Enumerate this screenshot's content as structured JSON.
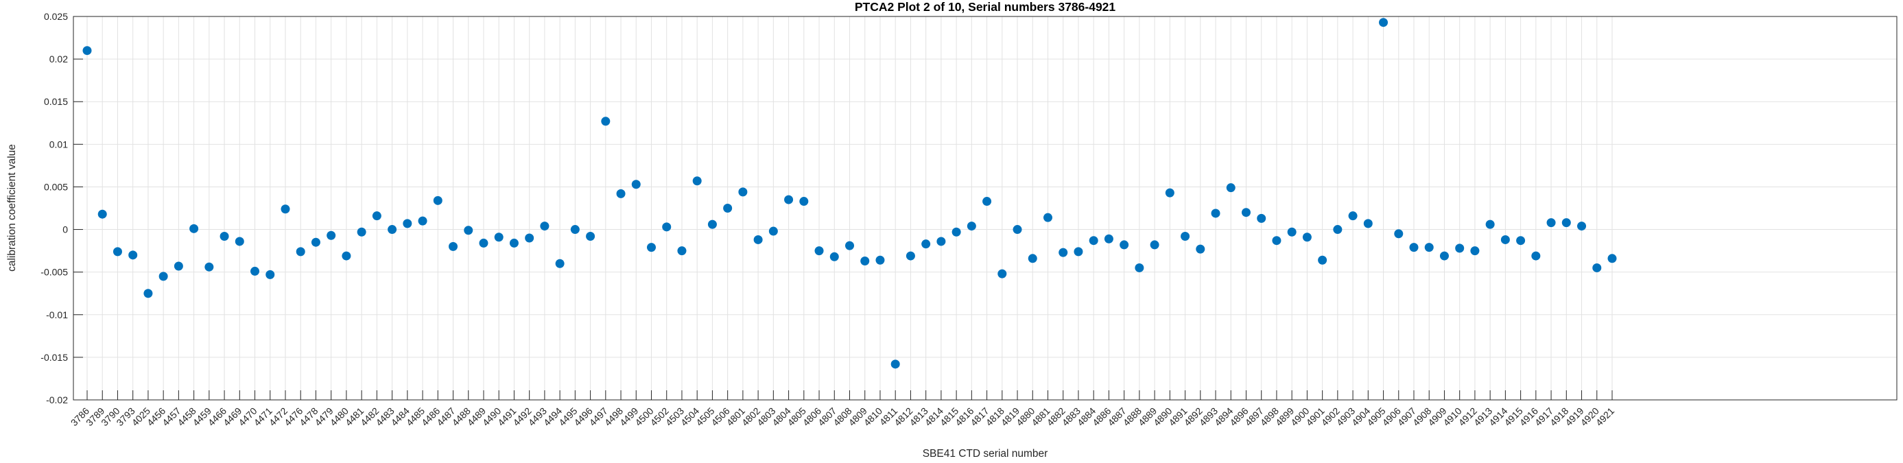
{
  "chart_data": {
    "type": "scatter",
    "title": "PTCA2 Plot 2 of 10, Serial numbers 3786-4921",
    "xlabel": "SBE41 CTD serial number",
    "ylabel": "calibration coefficient value",
    "ylim": [
      -0.02,
      0.025
    ],
    "ytick_values": [
      0.025,
      0.02,
      0.015,
      0.01,
      0.005,
      0,
      -0.005,
      -0.01,
      -0.015,
      -0.02
    ],
    "ytick_labels": [
      "0.025",
      "0.02",
      "0.015",
      "0.01",
      "0.005",
      "0",
      "-0.005",
      "-0.01",
      "-0.015",
      "-0.02"
    ],
    "grid": "on",
    "legend": "none",
    "marker_color": "#0072BD",
    "grid_color": "#E2E2E2",
    "axis_color": "#262626",
    "categories": [
      "3786",
      "3789",
      "3790",
      "3793",
      "4025",
      "4456",
      "4457",
      "4458",
      "4459",
      "4466",
      "4469",
      "4470",
      "4471",
      "4472",
      "4476",
      "4478",
      "4479",
      "4480",
      "4481",
      "4482",
      "4483",
      "4484",
      "4485",
      "4486",
      "4487",
      "4488",
      "4489",
      "4490",
      "4491",
      "4492",
      "4493",
      "4494",
      "4495",
      "4496",
      "4497",
      "4498",
      "4499",
      "4500",
      "4502",
      "4503",
      "4504",
      "4505",
      "4506",
      "4801",
      "4802",
      "4803",
      "4804",
      "4805",
      "4806",
      "4807",
      "4808",
      "4809",
      "4810",
      "4811",
      "4812",
      "4813",
      "4814",
      "4815",
      "4816",
      "4817",
      "4818",
      "4819",
      "4880",
      "4881",
      "4882",
      "4883",
      "4884",
      "4886",
      "4887",
      "4888",
      "4889",
      "4890",
      "4891",
      "4892",
      "4893",
      "4894",
      "4896",
      "4897",
      "4898",
      "4899",
      "4900",
      "4901",
      "4902",
      "4903",
      "4904",
      "4905",
      "4906",
      "4907",
      "4908",
      "4909",
      "4910",
      "4912",
      "4913",
      "4914",
      "4915",
      "4916",
      "4917",
      "4918",
      "4919",
      "4920",
      "4921"
    ],
    "values": [
      0.021,
      0.0018,
      -0.0026,
      -0.003,
      -0.0075,
      -0.0055,
      -0.0043,
      0.0001,
      -0.0044,
      -0.0008,
      -0.0014,
      -0.0049,
      -0.0053,
      0.0024,
      -0.0026,
      -0.0015,
      -0.0007,
      -0.0031,
      -0.0003,
      0.0016,
      0.0,
      0.0007,
      0.001,
      0.0034,
      -0.002,
      -0.0001,
      -0.0016,
      -0.0009,
      -0.0016,
      -0.001,
      0.0004,
      -0.004,
      0.0,
      -0.0008,
      0.0127,
      0.0042,
      0.0053,
      -0.0021,
      0.0003,
      -0.0025,
      0.0057,
      0.0006,
      0.0025,
      0.0044,
      -0.0012,
      -0.0002,
      0.0035,
      0.0033,
      -0.0025,
      -0.0032,
      -0.0019,
      -0.0037,
      -0.0036,
      -0.0158,
      -0.0031,
      -0.0017,
      -0.0014,
      -0.0003,
      0.0004,
      0.0033,
      -0.0052,
      0.0,
      -0.0034,
      0.0014,
      -0.0027,
      -0.0026,
      -0.0013,
      -0.0011,
      -0.0018,
      -0.0045,
      -0.0018,
      0.0043,
      -0.0008,
      -0.0023,
      0.0019,
      0.0049,
      0.002,
      0.0013,
      -0.0013,
      -0.0003,
      -0.0009,
      -0.0036,
      0.0,
      0.0016,
      0.0007,
      0.0243,
      -0.0005,
      -0.0021,
      -0.0021,
      -0.0031,
      -0.0022,
      -0.0025,
      0.0006,
      -0.0012,
      -0.0013,
      -0.0031,
      0.0008,
      0.0008,
      0.0004,
      -0.0045,
      -0.0034
    ]
  }
}
